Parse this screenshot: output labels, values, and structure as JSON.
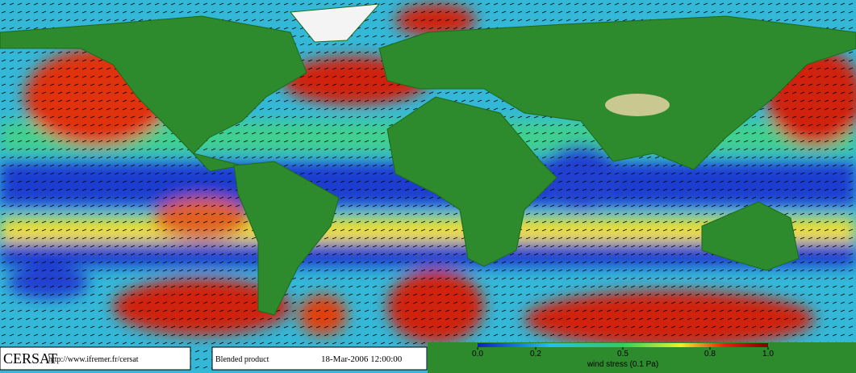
{
  "footer": {
    "logo": "CERSAT",
    "url": "http://www.ifremer.fr/cersat",
    "product": "Blended product",
    "date": "18-Mar-2006 12:00:00"
  },
  "colorbar": {
    "label": "wind stress (0.1 Pa)",
    "lim": [
      0,
      1
    ],
    "ticks": [
      {
        "value": 0,
        "label": "0.0"
      },
      0.2,
      0.5,
      0.8,
      {
        "value": 1,
        "label": "1.0"
      }
    ]
  }
}
